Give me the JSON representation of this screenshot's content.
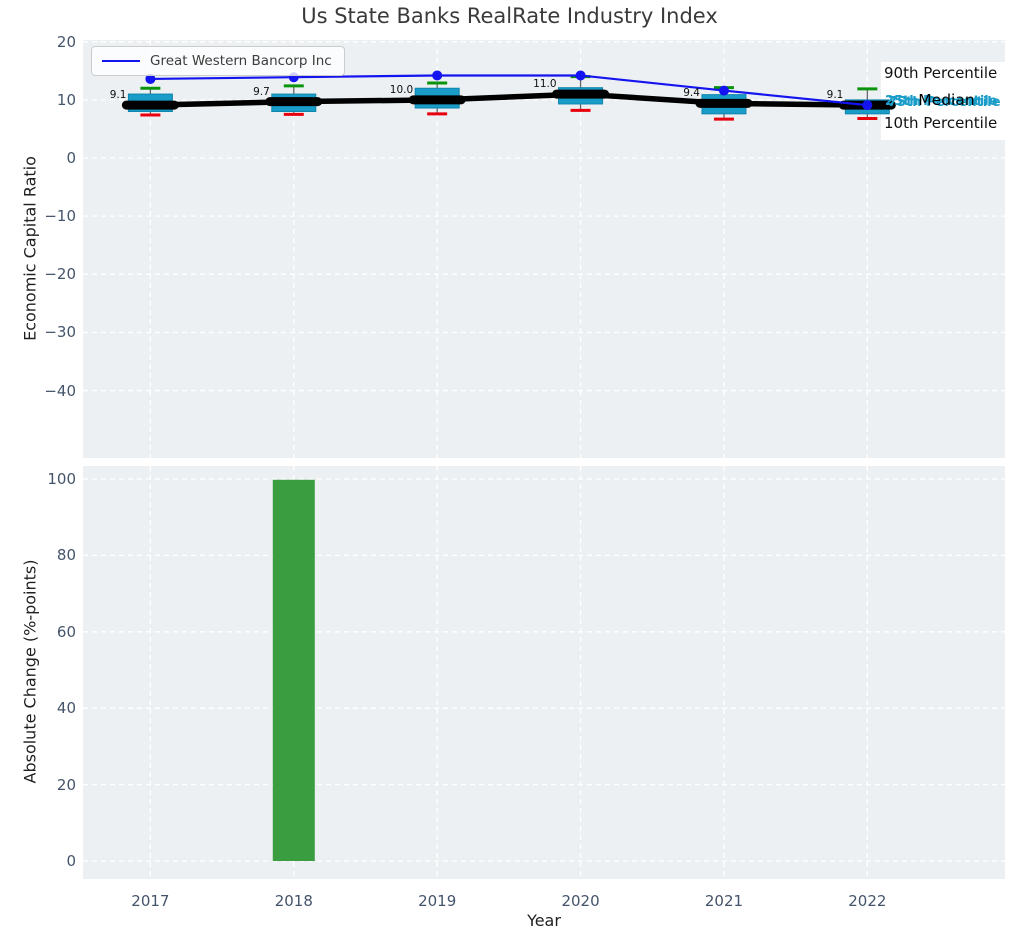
{
  "figure": {
    "title": "Us State Banks RealRate Industry Index"
  },
  "legend": {
    "label": "Great Western Bancorp Inc"
  },
  "percentile_labels": {
    "p90": "90th Percentile",
    "p75": "75th Percentile",
    "median": "Median",
    "p25": "25th Percentile",
    "p10": "10th Percentile"
  },
  "colors": {
    "plot_bg": "#ecf0f2",
    "grid": "#ffffff",
    "box_fill": "#1a9cc9",
    "box_edge": "#0f85ad",
    "median_line": "#000000",
    "company_line": "#1414f0",
    "whisker": "#666666",
    "p90_cap": "#0c930c",
    "p10_cap": "#e8000d",
    "bar_fill": "#3a9d3f",
    "tick_text": "#44546a",
    "axis_text": "#1f1f1f",
    "title_text": "#3a3a3a"
  },
  "chart_data": [
    {
      "type": "line+boxplot",
      "title": "Us State Banks RealRate Industry Index",
      "ylabel": "Economic Capital Ratio",
      "x": [
        2017,
        2018,
        2019,
        2020,
        2021,
        2022
      ],
      "xlim": [
        2016.53,
        2022.96
      ],
      "ylim": [
        -51.6,
        20.3
      ],
      "yticks": [
        20,
        10,
        0,
        -10,
        -20,
        -30,
        -40
      ],
      "grid": true,
      "legend_position": "upper left",
      "series": [
        {
          "name": "Great Western Bancorp Inc",
          "role": "company-line",
          "values": [
            13.6,
            13.9,
            14.2,
            14.2,
            11.6,
            9.1
          ]
        },
        {
          "name": "90th Percentile",
          "role": "whisker-top",
          "values": [
            12.0,
            12.4,
            12.9,
            14.0,
            12.1,
            11.9
          ]
        },
        {
          "name": "75th Percentile",
          "role": "box-top",
          "values": [
            11.0,
            11.0,
            12.0,
            12.1,
            10.9,
            10.0
          ]
        },
        {
          "name": "Median",
          "role": "median-line",
          "values": [
            9.1,
            9.7,
            10.0,
            11.0,
            9.4,
            9.1
          ]
        },
        {
          "name": "25th Percentile",
          "role": "box-bottom",
          "values": [
            8.0,
            8.0,
            8.6,
            9.3,
            7.6,
            7.6
          ]
        },
        {
          "name": "10th Percentile",
          "role": "whisker-bottom",
          "values": [
            7.4,
            7.5,
            7.6,
            8.2,
            6.7,
            6.8
          ]
        }
      ],
      "median_value_labels": [
        "9.1",
        "9.7",
        "10.0",
        "11.0",
        "9.4",
        "9.1"
      ]
    },
    {
      "type": "bar",
      "xlabel": "Year",
      "ylabel": "Absolute Change (%-points)",
      "categories": [
        2017,
        2018,
        2019,
        2020,
        2021,
        2022
      ],
      "values": [
        0,
        99.8,
        0,
        0,
        0,
        0
      ],
      "xlim": [
        2016.53,
        2022.96
      ],
      "ylim": [
        -4.7,
        103.4
      ],
      "yticks": [
        100,
        80,
        60,
        40,
        20,
        0
      ],
      "grid": true
    }
  ]
}
